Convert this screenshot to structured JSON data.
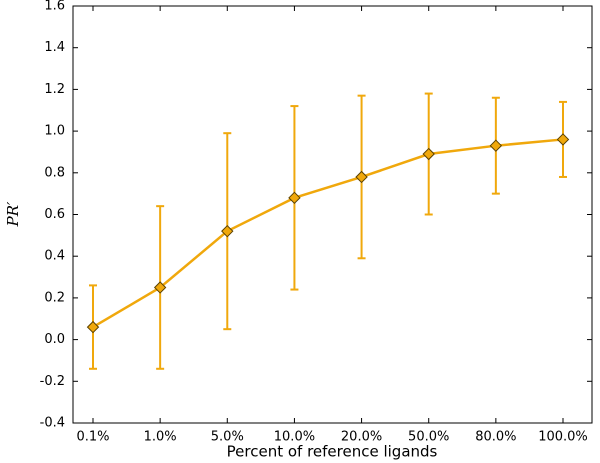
{
  "chart_data": {
    "type": "line",
    "x_label": "Percent of reference ligands",
    "y_label": "PR′",
    "categories": [
      "0.1%",
      "1.0%",
      "5.0%",
      "10.0%",
      "20.0%",
      "50.0%",
      "80.0%",
      "100.0%"
    ],
    "series": [
      {
        "color": "#f0a80c",
        "values": [
          0.06,
          0.25,
          0.52,
          0.68,
          0.78,
          0.89,
          0.93,
          0.96
        ],
        "errors": [
          0.2,
          0.39,
          0.47,
          0.44,
          0.39,
          0.29,
          0.23,
          0.18
        ]
      }
    ],
    "ylim": [
      -0.4,
      1.6
    ],
    "yticks": [
      -0.4,
      -0.2,
      {
        "value": 0,
        "label": "0.0"
      },
      0.2,
      0.4,
      0.6,
      0.8,
      {
        "value": 1,
        "label": "1.0"
      },
      1.2,
      1.4,
      1.6
    ],
    "grid": false
  }
}
